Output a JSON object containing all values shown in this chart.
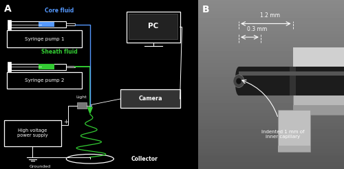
{
  "panel_A_bg": "#000000",
  "white": "#ffffff",
  "blue_fluid": "#5599ff",
  "green_fluid": "#33cc33",
  "gray": "#aaaaaa",
  "dark_gray": "#555555",
  "med_gray": "#888888",
  "title_A": "A",
  "title_B": "B",
  "core_fluid_label": "Core fluid",
  "sheath_fluid_label": "Sheath fluid",
  "pump1_label": "Syringe pump 1",
  "pump2_label": "Syringe pump 2",
  "pc_label": "PC",
  "camera_label": "Camera",
  "light_label": "Light",
  "hv_label": "High voltage\npower supply",
  "grounded_label": "Grounded",
  "collector_label": "Collector",
  "dim1_label": "1.2 mm",
  "dim2_label": "0.3 mm",
  "indent_label": "Indented 1 mm of\ninner capillary",
  "figsize": [
    5.0,
    2.46
  ],
  "dpi": 100
}
